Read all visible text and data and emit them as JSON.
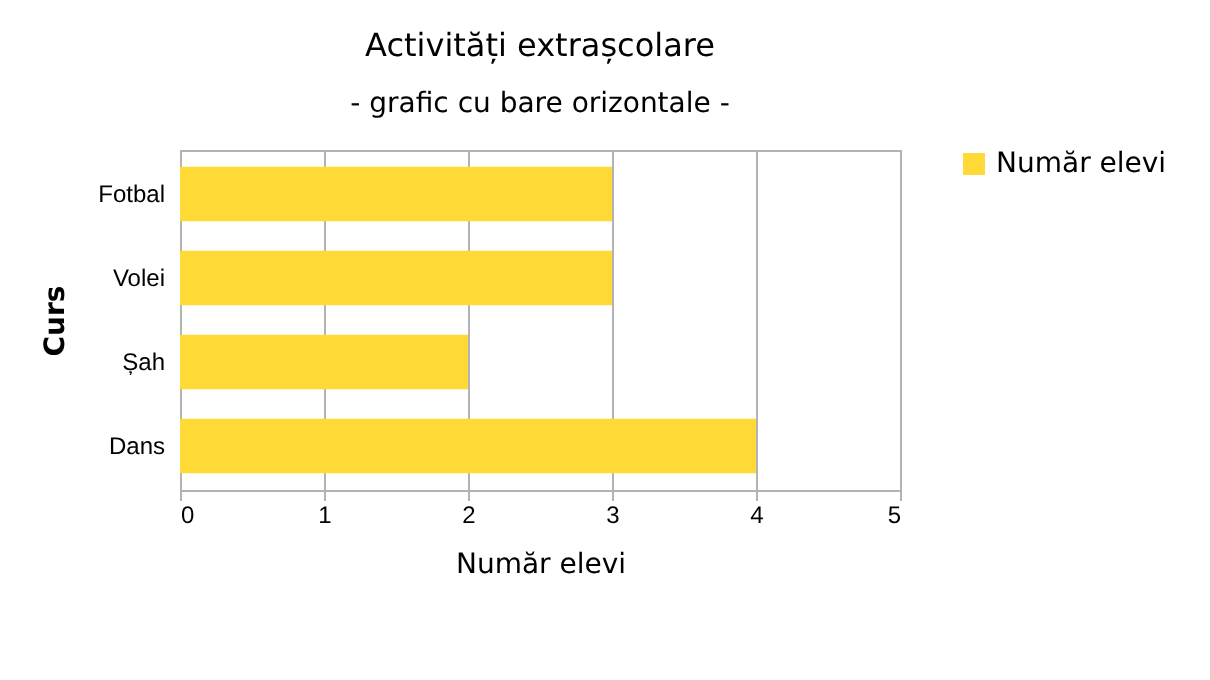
{
  "chart_data": {
    "type": "bar",
    "orientation": "horizontal",
    "title": "Activități extrașcolare",
    "subtitle": "- grafic cu bare orizontale -",
    "xlabel": "Număr elevi",
    "ylabel": "Curs",
    "categories": [
      "Fotbal",
      "Volei",
      "Șah",
      "Dans"
    ],
    "series": [
      {
        "name": "Număr elevi",
        "color": "#ffd935",
        "values": [
          3,
          3,
          2,
          4
        ]
      }
    ],
    "xlim": [
      0,
      5
    ],
    "xticks": [
      0,
      1,
      2,
      3,
      4,
      5
    ],
    "grid": "x",
    "legend": "right"
  }
}
